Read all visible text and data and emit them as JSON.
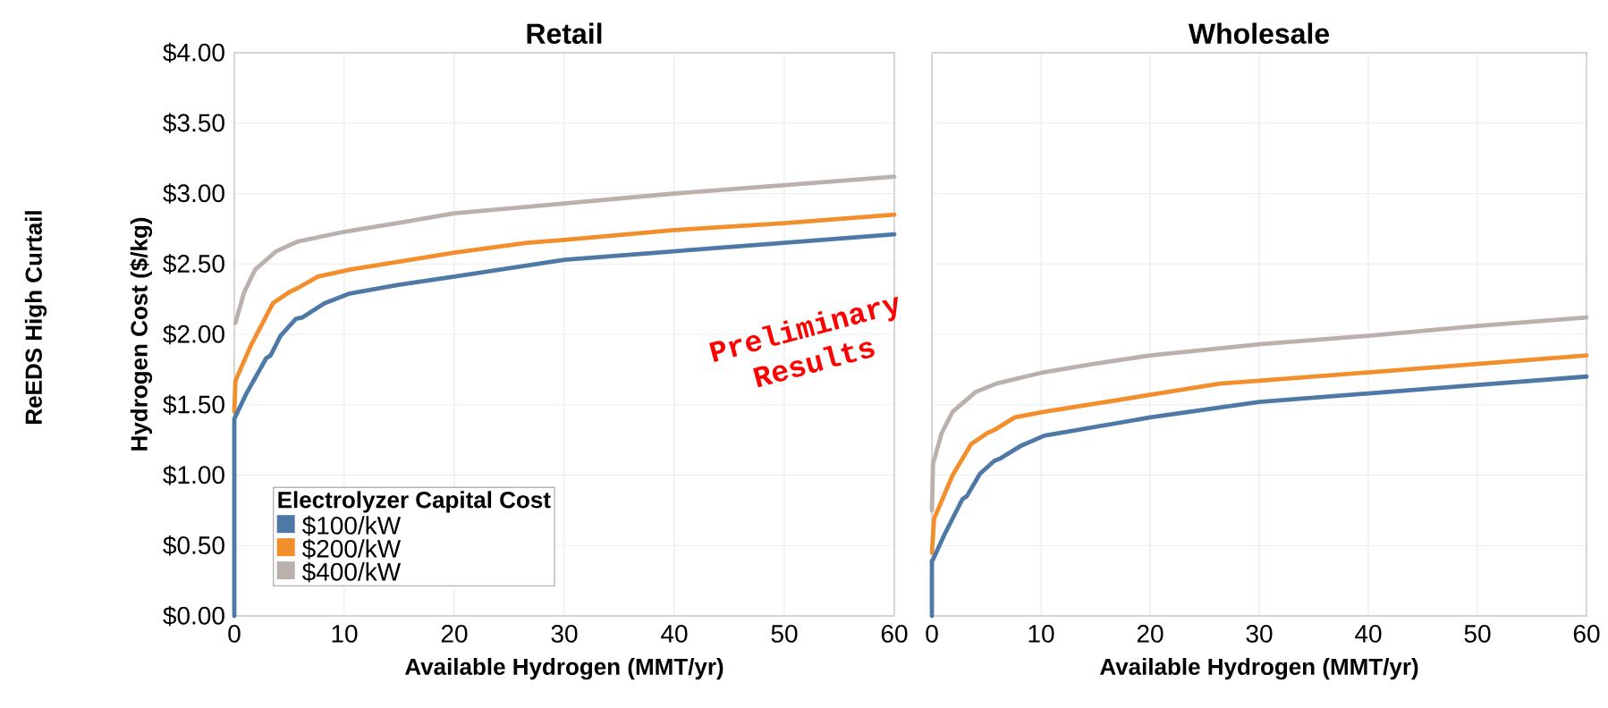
{
  "chart_data": [
    {
      "type": "line",
      "title": "Retail",
      "xlabel": "Available Hydrogen (MMT/yr)",
      "ylabel": "Hydrogen Cost ($/kg)",
      "xlim": [
        0,
        60
      ],
      "ylim": [
        0,
        4
      ],
      "xticks": [
        0,
        10,
        20,
        30,
        40,
        50,
        60
      ],
      "yticks": [
        {
          "value": 0,
          "label": "$0.00"
        },
        {
          "value": 0.5,
          "label": "$0.50"
        },
        {
          "value": 1,
          "label": "$1.00"
        },
        {
          "value": 1.5,
          "label": "$1.50"
        },
        {
          "value": 2,
          "label": "$2.00"
        },
        {
          "value": 2.5,
          "label": "$2.50"
        },
        {
          "value": 3,
          "label": "$3.00"
        },
        {
          "value": 3.5,
          "label": "$3.50"
        },
        {
          "value": 4,
          "label": "$4.00"
        }
      ],
      "grid": true,
      "legend": "bottom left",
      "legend_title": "Electrolyzer Capital Cost",
      "annotations": [
        "ReEDS High Curtail",
        "Preliminary Results"
      ],
      "series": [
        {
          "name": "$100/kW",
          "color": "#4e79a7",
          "x": [
            0,
            0,
            1.1,
            2.9,
            3.3,
            4.2,
            5.6,
            6.2,
            8.2,
            10.5,
            14.8,
            20,
            30,
            40,
            50,
            60
          ],
          "values": [
            0,
            1.4,
            1.58,
            1.83,
            1.85,
            1.99,
            2.11,
            2.12,
            2.22,
            2.29,
            2.35,
            2.41,
            2.53,
            2.59,
            2.65,
            2.71
          ]
        },
        {
          "name": "$200/kW",
          "color": "#f28e2b",
          "x": [
            0,
            0.1,
            1.5,
            3.5,
            5.0,
            5.8,
            7.6,
            10.5,
            20,
            26.6,
            30,
            40,
            50,
            60
          ],
          "values": [
            1.45,
            1.67,
            1.92,
            2.22,
            2.3,
            2.33,
            2.41,
            2.46,
            2.58,
            2.65,
            2.67,
            2.74,
            2.79,
            2.85
          ]
        },
        {
          "name": "$400/kW",
          "color": "#bab0ac",
          "x": [
            0.1,
            0.9,
            1.9,
            3.8,
            5.8,
            10.1,
            14.8,
            20,
            30,
            40,
            50,
            60
          ],
          "values": [
            2.08,
            2.3,
            2.46,
            2.59,
            2.66,
            2.73,
            2.79,
            2.86,
            2.93,
            3.0,
            3.06,
            3.12
          ]
        }
      ]
    },
    {
      "type": "line",
      "title": "Wholesale",
      "xlabel": "Available Hydrogen (MMT/yr)",
      "xlim": [
        0,
        60
      ],
      "ylim": [
        0,
        4
      ],
      "xticks": [
        0,
        10,
        20,
        30,
        40,
        50,
        60
      ],
      "yticks": [
        0,
        0.5,
        1,
        1.5,
        2,
        2.5,
        3,
        3.5,
        4
      ],
      "tick_labels": "x",
      "grid": true,
      "series": [
        {
          "color": "#4e79a7",
          "x": [
            0,
            0,
            0.1,
            1.1,
            2.8,
            3.2,
            4.4,
            5.7,
            6.3,
            8.2,
            10.3,
            20,
            30,
            40,
            50,
            60
          ],
          "values": [
            0,
            0.39,
            0.4,
            0.57,
            0.83,
            0.85,
            1.01,
            1.1,
            1.12,
            1.21,
            1.28,
            1.41,
            1.52,
            1.58,
            1.64,
            1.7
          ]
        },
        {
          "color": "#f28e2b",
          "x": [
            0,
            0.2,
            1.9,
            3.6,
            5.1,
            5.7,
            7.6,
            10.3,
            20,
            26.4,
            30,
            40,
            50,
            60
          ],
          "values": [
            0.45,
            0.69,
            1.0,
            1.22,
            1.3,
            1.32,
            1.41,
            1.45,
            1.57,
            1.65,
            1.67,
            1.73,
            1.79,
            1.85
          ]
        },
        {
          "color": "#bab0ac",
          "x": [
            0,
            0.1,
            0.9,
            1.9,
            4.0,
            5.9,
            10.2,
            14.8,
            20,
            30,
            40,
            50,
            60
          ],
          "values": [
            0.75,
            1.08,
            1.3,
            1.45,
            1.59,
            1.65,
            1.73,
            1.79,
            1.85,
            1.93,
            1.99,
            2.06,
            2.12
          ]
        }
      ]
    }
  ]
}
